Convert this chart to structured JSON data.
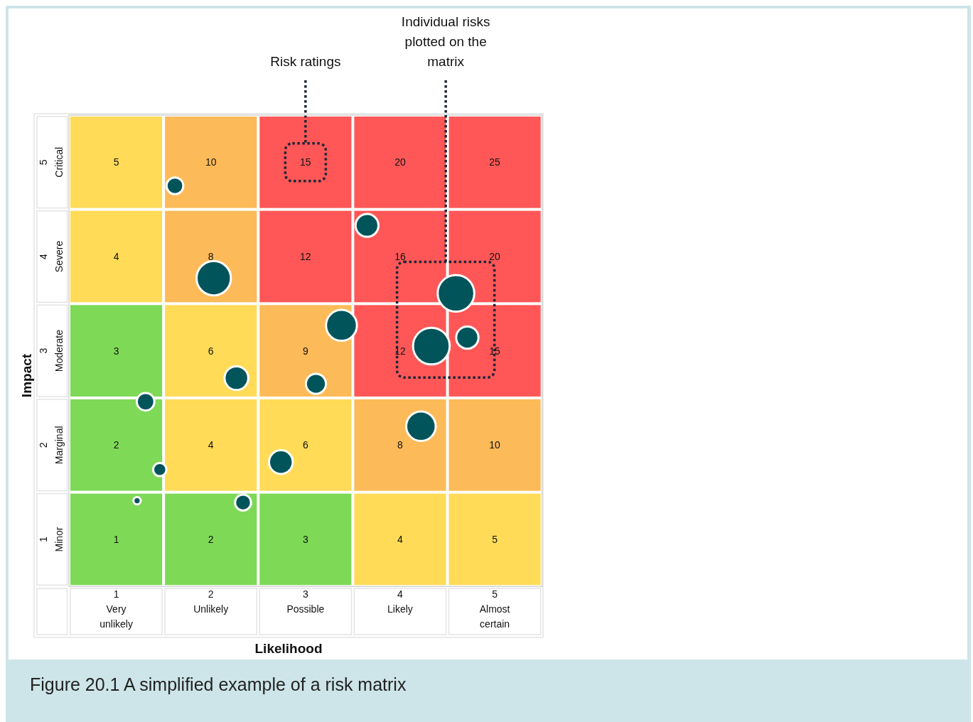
{
  "chart_data": [
    {
      "type": "heatmap",
      "xlabel": "Likelihood",
      "ylabel": "Impact",
      "categories": [
        "Very unlikely",
        "Unlikely",
        "Possible",
        "Likely",
        "Almost certain"
      ],
      "y_categories": [
        "Critical",
        "Severe",
        "Moderate",
        "Marginal",
        "Minor"
      ],
      "cells": [
        [
          5,
          10,
          15,
          20,
          25
        ],
        [
          4,
          8,
          12,
          16,
          20
        ],
        [
          3,
          6,
          9,
          12,
          15
        ],
        [
          2,
          4,
          6,
          8,
          10
        ],
        [
          1,
          2,
          3,
          4,
          5
        ]
      ],
      "colors": [
        [
          "#ffdb58",
          "#fdba58",
          "#ff5757",
          "#ff5757",
          "#ff5757"
        ],
        [
          "#ffdb58",
          "#fdba58",
          "#ff5757",
          "#ff5757",
          "#ff5757"
        ],
        [
          "#7ed957",
          "#ffdb58",
          "#fdba58",
          "#ff5757",
          "#ff5757"
        ],
        [
          "#7ed957",
          "#ffdb58",
          "#ffdb58",
          "#fdba58",
          "#fdba58"
        ],
        [
          "#7ed957",
          "#7ed957",
          "#7ed957",
          "#ffdb58",
          "#ffdb58"
        ]
      ],
      "data_labels": true,
      "annotations": [
        "Risk ratings",
        "Figure 20.1 A simplified example of a risk matrix"
      ]
    },
    {
      "type": "bubble",
      "xlim": [
        0.5,
        5.5
      ],
      "xticks": [
        1,
        2,
        3,
        4,
        5
      ],
      "ylim": [
        0.5,
        5.5
      ],
      "yticks": [
        1,
        2,
        3,
        4,
        5
      ],
      "series": [
        {
          "color": "#01545a",
          "x": [
            1.22,
            1.31,
            1.46,
            1.62,
            2.03,
            2.27,
            2.34,
            2.74,
            3.11,
            3.38,
            3.65,
            4.22,
            4.33,
            4.59,
            4.71
          ],
          "values": [
            1.41,
            2.46,
            1.74,
            4.75,
            3.77,
            2.71,
            1.39,
            1.82,
            2.65,
            3.27,
            4.33,
            2.2,
            3.05,
            3.61,
            3.14
          ],
          "sizes": [
            0.04,
            0.23,
            0.13,
            0.21,
            0.88,
            0.42,
            0.19,
            0.42,
            0.3,
            0.71,
            0.39,
            0.65,
            1,
            1,
            0.37
          ]
        }
      ],
      "annotations": [
        "Individual risks plotted on the matrix"
      ]
    }
  ]
}
